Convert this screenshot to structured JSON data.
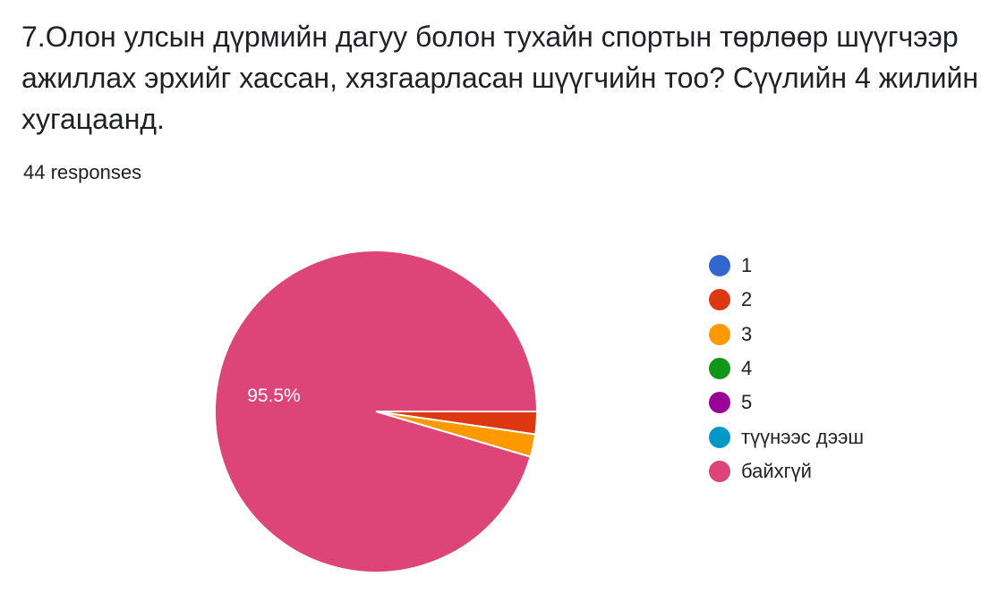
{
  "question": {
    "title": "7.Олон улсын дүрмийн дагуу болон тухайн спортын төрлөөр шүүгчээр ажиллах эрхийг хассан, хязгаарласан шүүгчийн тоо? Сүүлийн 4 жилийн хугацаанд.",
    "responses_label": "44 responses"
  },
  "chart_data": {
    "type": "pie",
    "categories": [
      "1",
      "2",
      "3",
      "4",
      "5",
      "түүнээс дээш",
      "байхгүй"
    ],
    "values": [
      0,
      1,
      1,
      0,
      0,
      0,
      42
    ],
    "colors": [
      "#3366cc",
      "#dc3912",
      "#ff9900",
      "#109618",
      "#990099",
      "#0099c6",
      "#dd4477"
    ],
    "data_labels": [
      {
        "category": "байхгүй",
        "text": "95.5%"
      }
    ],
    "legend_position": "right"
  }
}
